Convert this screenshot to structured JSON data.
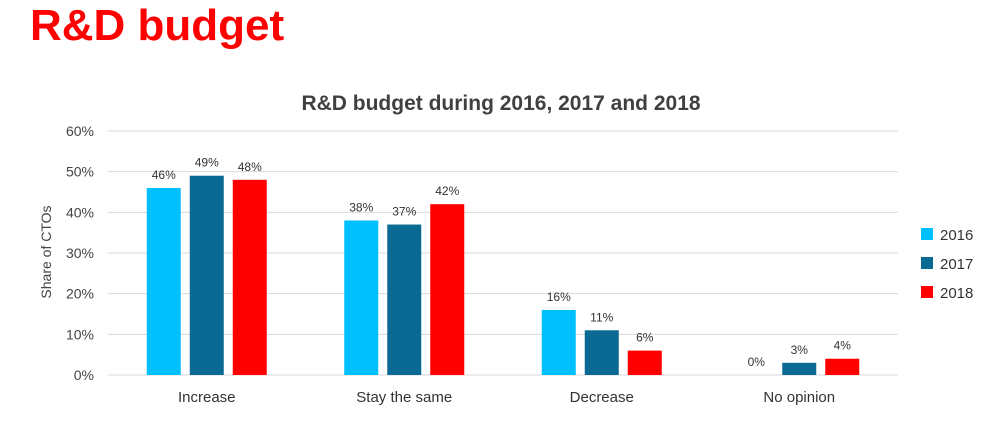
{
  "slide": {
    "title": "R&D budget"
  },
  "colors": {
    "title": "#ff0000",
    "grid": "#d9d9d9",
    "s2016": "#00c0ff",
    "s2017": "#0b6a94",
    "s2018": "#ff0000"
  },
  "chart_data": {
    "type": "bar",
    "title": "R&D budget during 2016, 2017 and 2018",
    "xlabel": "",
    "ylabel": "Share of CTOs",
    "ylim": [
      0,
      60
    ],
    "yticks": [
      "0%",
      "10%",
      "20%",
      "30%",
      "40%",
      "50%",
      "60%"
    ],
    "grid": true,
    "legend": "right",
    "categories": [
      "Increase",
      "Stay the same",
      "Decrease",
      "No opinion"
    ],
    "series": [
      {
        "name": "2016",
        "color": "#00c0ff",
        "values": [
          46,
          38,
          16,
          0
        ],
        "labels": [
          "46%",
          "38%",
          "16%",
          "0%"
        ]
      },
      {
        "name": "2017",
        "color": "#0b6a94",
        "values": [
          49,
          37,
          11,
          3
        ],
        "labels": [
          "49%",
          "37%",
          "11%",
          "3%"
        ]
      },
      {
        "name": "2018",
        "color": "#ff0000",
        "values": [
          48,
          42,
          6,
          4
        ],
        "labels": [
          "48%",
          "42%",
          "6%",
          "4%"
        ]
      }
    ]
  }
}
